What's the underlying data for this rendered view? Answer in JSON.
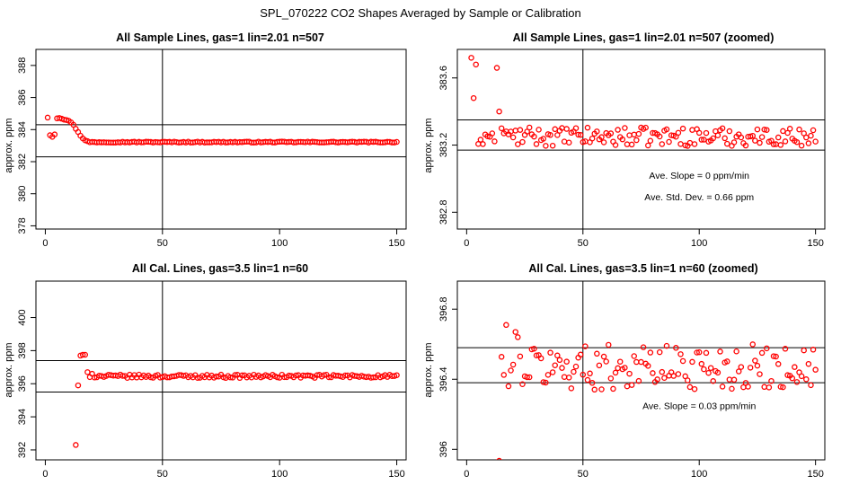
{
  "figure": {
    "title": "SPL_070222  CO2 Shapes Averaged by Sample or Calibration"
  },
  "chart_data": [
    {
      "type": "scatter",
      "title": "All Sample Lines, gas=1 lin=2.01 n=507",
      "xlabel": "",
      "ylabel": "approx. ppm",
      "xlim": [
        -4,
        154
      ],
      "ylim": [
        377.8,
        389
      ],
      "xticks": [
        0,
        50,
        100,
        150
      ],
      "yticks": [
        378,
        380,
        382,
        384,
        386,
        388
      ],
      "hlines": [
        384.3,
        382.3
      ],
      "vline": 50,
      "point_color": "#ff0000",
      "series": [
        {
          "curve": "sample",
          "x_start": 1,
          "x_end": 150,
          "n": 150
        }
      ],
      "annotations": []
    },
    {
      "type": "scatter",
      "title": "All Sample Lines, gas=1 lin=2.01 n=507 (zoomed)",
      "xlabel": "",
      "ylabel": "approx. ppm",
      "xlim": [
        -4,
        154
      ],
      "ylim": [
        382.7,
        383.77
      ],
      "xticks": [
        0,
        50,
        100,
        150
      ],
      "yticks": [
        382.8,
        383.2,
        383.6
      ],
      "hlines": [
        383.35,
        383.17
      ],
      "vline": 50,
      "point_color": "#ff0000",
      "series": [
        {
          "curve": "sample_zoom",
          "x_start": 2,
          "x_end": 150,
          "n": 149
        }
      ],
      "annotations": [
        {
          "text": "Ave. Slope =  0  ppm/min",
          "x": 100,
          "y": 383.0
        },
        {
          "text": "Ave. Std. Dev. =  0.66  ppm",
          "x": 100,
          "y": 382.87
        }
      ]
    },
    {
      "type": "scatter",
      "title": "All Cal. Lines, gas=3.5 lin=1 n=60",
      "xlabel": "",
      "ylabel": "approx. ppm",
      "xlim": [
        -4,
        154
      ],
      "ylim": [
        391.4,
        402.2
      ],
      "xticks": [
        0,
        50,
        100,
        150
      ],
      "yticks": [
        392,
        394,
        396,
        398,
        400
      ],
      "hlines": [
        397.4,
        395.5
      ],
      "vline": 50,
      "point_color": "#ff0000",
      "series": [
        {
          "curve": "cal",
          "x_start": 13,
          "x_end": 150,
          "n": 138
        }
      ],
      "annotations": []
    },
    {
      "type": "scatter",
      "title": "All Cal. Lines, gas=3.5 lin=1 n=60 (zoomed)",
      "xlabel": "",
      "ylabel": "approx. ppm",
      "xlim": [
        -4,
        154
      ],
      "ylim": [
        395.94,
        396.96
      ],
      "xticks": [
        0,
        50,
        100,
        150
      ],
      "yticks": [
        396.0,
        396.4,
        396.8
      ],
      "hlines": [
        396.58,
        396.38
      ],
      "vline": 50,
      "point_color": "#ff0000",
      "series": [
        {
          "curve": "cal_zoom",
          "x_start": 14,
          "x_end": 150,
          "n": 137
        }
      ],
      "annotations": [
        {
          "text": "Ave. Slope =  0.03  ppm/min",
          "x": 100,
          "y": 396.23
        }
      ]
    }
  ]
}
